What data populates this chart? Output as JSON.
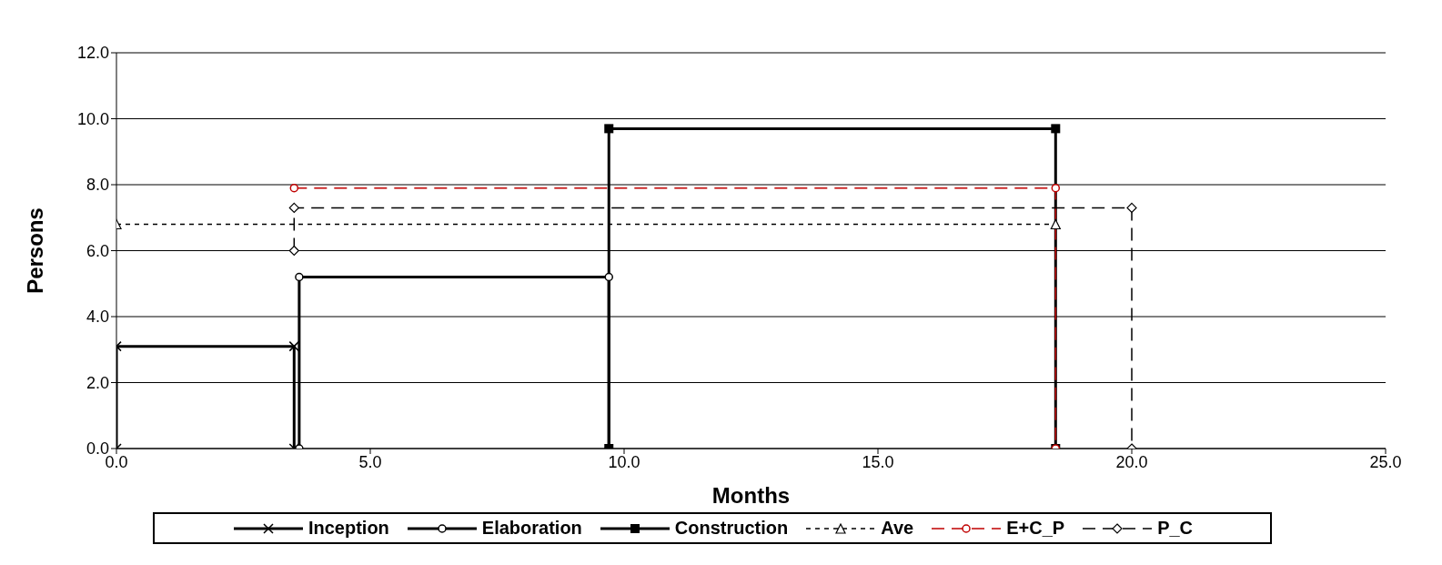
{
  "chart_data": {
    "type": "line",
    "xlabel": "Months",
    "ylabel": "Persons",
    "xlim": [
      0,
      25
    ],
    "xticks": [
      {
        "value": 0,
        "label": "0.0"
      },
      {
        "value": 5,
        "label": "5.0"
      },
      {
        "value": 10,
        "label": "10.0"
      },
      {
        "value": 15,
        "label": "15.0"
      },
      {
        "value": 20,
        "label": "20.0"
      },
      {
        "value": 25,
        "label": "25.0"
      }
    ],
    "ylim": [
      0,
      12
    ],
    "yticks": [
      {
        "value": 0,
        "label": "0.0"
      },
      {
        "value": 2,
        "label": "2.0"
      },
      {
        "value": 4,
        "label": "4.0"
      },
      {
        "value": 6,
        "label": "6.0"
      },
      {
        "value": 8,
        "label": "8.0"
      },
      {
        "value": 10,
        "label": "10.0"
      },
      {
        "value": 12,
        "label": "12.0"
      }
    ],
    "grid": "y",
    "legend": "bottom",
    "series": [
      {
        "name": "Inception",
        "color": "#000000",
        "marker": "cross",
        "line_style": "solid",
        "x": [
          0,
          0,
          3.5,
          3.5
        ],
        "values": [
          0,
          3.1,
          3.1,
          0
        ]
      },
      {
        "name": "Elaboration",
        "color": "#000000",
        "marker": "circle",
        "line_style": "solid",
        "x": [
          3.6,
          3.6,
          9.7,
          9.7
        ],
        "values": [
          0,
          5.2,
          5.2,
          0
        ]
      },
      {
        "name": "Construction",
        "color": "#000000",
        "marker": "square",
        "line_style": "solid",
        "x": [
          9.7,
          9.7,
          18.5,
          18.5
        ],
        "values": [
          0,
          9.7,
          9.7,
          0
        ]
      },
      {
        "name": "Ave",
        "color": "#000000",
        "marker": "triangle",
        "line_style": "dotted",
        "x": [
          0,
          18.5
        ],
        "values": [
          6.8,
          6.8
        ]
      },
      {
        "name": "E+C_P",
        "color": "#c00000",
        "marker": "circle",
        "line_style": "dashed",
        "x": [
          3.5,
          18.5,
          18.5
        ],
        "values": [
          7.9,
          7.9,
          0
        ]
      },
      {
        "name": "P_C",
        "color": "#000000",
        "marker": "diamond",
        "line_style": "dashed",
        "x": [
          3.5,
          3.5,
          20,
          20
        ],
        "values": [
          6.0,
          7.3,
          7.3,
          0
        ]
      }
    ]
  }
}
